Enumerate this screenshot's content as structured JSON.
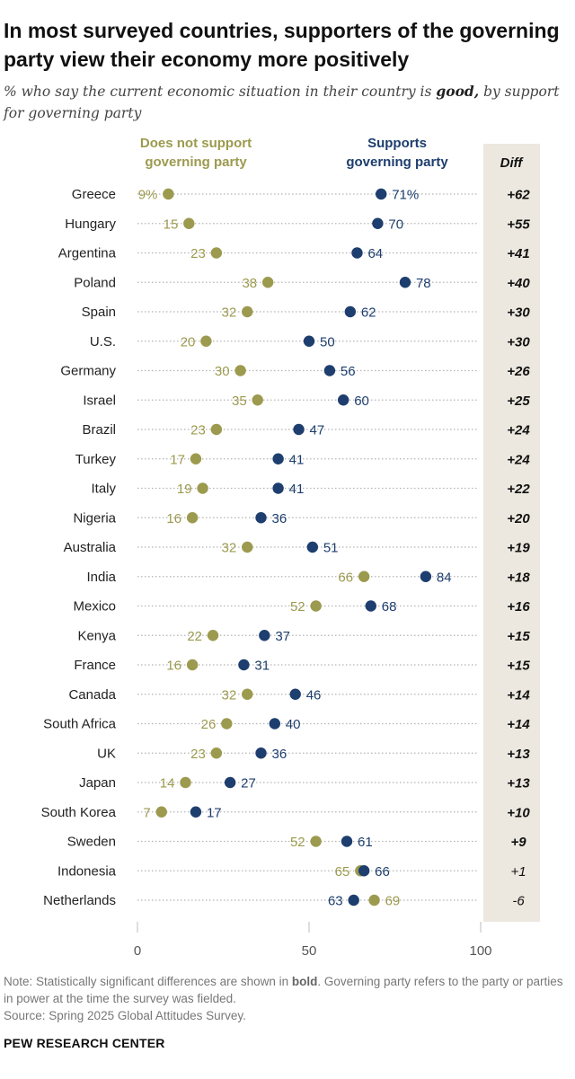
{
  "title": "In most surveyed countries, supporters of the governing party view their economy more positively",
  "subtitle": {
    "before": "% who say the current economic situation in their country is ",
    "emphasis": "good,",
    "after": " by support for governing party"
  },
  "colors": {
    "not_support": "#9c9a4e",
    "support": "#1d3e6e",
    "diff_panel": "#ece8df",
    "dotted_line": "#b5b5b5"
  },
  "chart_data": {
    "type": "scatter",
    "subtype": "dot-plot",
    "series": [
      {
        "name": "Does not support governing party",
        "color": "#9c9a4e"
      },
      {
        "name": "Supports governing party",
        "color": "#1d3e6e"
      }
    ],
    "diff_header": "Diff",
    "countries": [
      {
        "name": "Greece",
        "not_support": 9,
        "support": 71,
        "diff": "+62",
        "bold": true,
        "not_label": "9%",
        "sup_label": "71%"
      },
      {
        "name": "Hungary",
        "not_support": 15,
        "support": 70,
        "diff": "+55",
        "bold": true
      },
      {
        "name": "Argentina",
        "not_support": 23,
        "support": 64,
        "diff": "+41",
        "bold": true
      },
      {
        "name": "Poland",
        "not_support": 38,
        "support": 78,
        "diff": "+40",
        "bold": true
      },
      {
        "name": "Spain",
        "not_support": 32,
        "support": 62,
        "diff": "+30",
        "bold": true
      },
      {
        "name": "U.S.",
        "not_support": 20,
        "support": 50,
        "diff": "+30",
        "bold": true
      },
      {
        "name": "Germany",
        "not_support": 30,
        "support": 56,
        "diff": "+26",
        "bold": true
      },
      {
        "name": "Israel",
        "not_support": 35,
        "support": 60,
        "diff": "+25",
        "bold": true
      },
      {
        "name": "Brazil",
        "not_support": 23,
        "support": 47,
        "diff": "+24",
        "bold": true
      },
      {
        "name": "Turkey",
        "not_support": 17,
        "support": 41,
        "diff": "+24",
        "bold": true
      },
      {
        "name": "Italy",
        "not_support": 19,
        "support": 41,
        "diff": "+22",
        "bold": true
      },
      {
        "name": "Nigeria",
        "not_support": 16,
        "support": 36,
        "diff": "+20",
        "bold": true
      },
      {
        "name": "Australia",
        "not_support": 32,
        "support": 51,
        "diff": "+19",
        "bold": true
      },
      {
        "name": "India",
        "not_support": 66,
        "support": 84,
        "diff": "+18",
        "bold": true
      },
      {
        "name": "Mexico",
        "not_support": 52,
        "support": 68,
        "diff": "+16",
        "bold": true
      },
      {
        "name": "Kenya",
        "not_support": 22,
        "support": 37,
        "diff": "+15",
        "bold": true
      },
      {
        "name": "France",
        "not_support": 16,
        "support": 31,
        "diff": "+15",
        "bold": true
      },
      {
        "name": "Canada",
        "not_support": 32,
        "support": 46,
        "diff": "+14",
        "bold": true
      },
      {
        "name": "South Africa",
        "not_support": 26,
        "support": 40,
        "diff": "+14",
        "bold": true
      },
      {
        "name": "UK",
        "not_support": 23,
        "support": 36,
        "diff": "+13",
        "bold": true
      },
      {
        "name": "Japan",
        "not_support": 14,
        "support": 27,
        "diff": "+13",
        "bold": true
      },
      {
        "name": "South Korea",
        "not_support": 7,
        "support": 17,
        "diff": "+10",
        "bold": true
      },
      {
        "name": "Sweden",
        "not_support": 52,
        "support": 61,
        "diff": "+9",
        "bold": true
      },
      {
        "name": "Indonesia",
        "not_support": 65,
        "support": 66,
        "diff": "+1",
        "bold": false
      },
      {
        "name": "Netherlands",
        "not_support": 69,
        "support": 63,
        "diff": "-6",
        "bold": false
      }
    ],
    "xlim": [
      0,
      100
    ],
    "xticks": [
      0,
      50,
      100
    ],
    "xtick_labels": [
      "0",
      "50",
      "100"
    ],
    "grid": false,
    "legend": "top (direct labels above dots)"
  },
  "note": {
    "before": "Note: Statistically significant differences are shown in ",
    "emphasis": "bold",
    "after": ". Governing party refers to the party or parties in power at the time the survey was fielded."
  },
  "source": "Source: Spring 2025 Global Attitudes Survey.",
  "brand": "PEW RESEARCH CENTER"
}
